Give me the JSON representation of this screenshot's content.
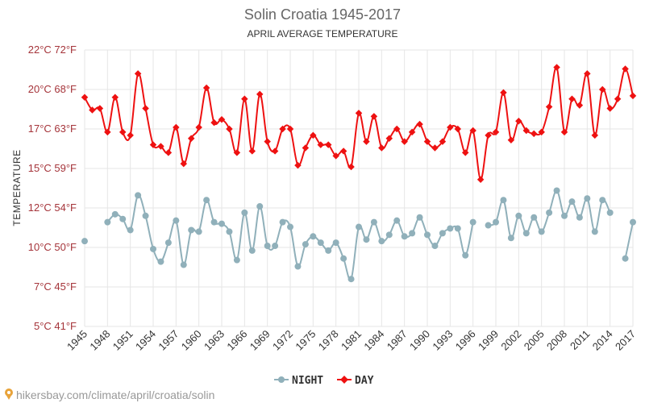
{
  "chart_data": {
    "type": "line",
    "title": "Solin Croatia 1945-2017",
    "subtitle": "APRIL AVERAGE TEMPERATURE",
    "ylabel": "TEMPERATURE",
    "ylim": [
      5,
      22
    ],
    "y_ticks": [
      {
        "value": 5,
        "label": "5°C 41°F"
      },
      {
        "value": 7.5,
        "label": "7°C 45°F"
      },
      {
        "value": 10,
        "label": "10°C 50°F"
      },
      {
        "value": 12.5,
        "label": "12°C 54°F"
      },
      {
        "value": 15,
        "label": "15°C 59°F"
      },
      {
        "value": 17.5,
        "label": "17°C 63°F"
      },
      {
        "value": 20,
        "label": "20°C 68°F"
      },
      {
        "value": 22.5,
        "label": "22°C 72°F"
      }
    ],
    "x_start": 1945,
    "x_end": 2017,
    "x_ticks": [
      1945,
      1948,
      1951,
      1954,
      1957,
      1960,
      1963,
      1966,
      1969,
      1972,
      1975,
      1978,
      1981,
      1984,
      1987,
      1990,
      1993,
      1996,
      1999,
      2002,
      2005,
      2008,
      2011,
      2014,
      2017
    ],
    "legend_position": "bottom",
    "series": [
      {
        "name": "NIGHT",
        "color": "#90b0ba",
        "values": [
          10.4,
          null,
          null,
          11.6,
          12.1,
          11.8,
          11.1,
          13.3,
          12.0,
          9.9,
          9.1,
          10.3,
          11.7,
          8.9,
          11.1,
          11.0,
          13.0,
          11.6,
          11.5,
          11.0,
          9.2,
          12.2,
          9.8,
          12.6,
          10.1,
          10.1,
          11.6,
          11.3,
          8.8,
          10.2,
          10.7,
          10.3,
          9.8,
          10.3,
          9.3,
          8.0,
          11.3,
          10.5,
          11.6,
          10.4,
          10.8,
          11.7,
          10.7,
          10.9,
          11.9,
          10.8,
          10.1,
          10.9,
          11.2,
          11.2,
          9.5,
          11.6,
          null,
          11.4,
          11.6,
          13.0,
          10.6,
          12.0,
          10.9,
          11.9,
          11.0,
          12.2,
          13.6,
          12.0,
          12.9,
          11.9,
          13.1,
          11.0,
          13.0,
          12.2,
          null,
          9.3,
          11.6
        ]
      },
      {
        "name": "DAY",
        "color": "#ee1111",
        "values": [
          19.5,
          18.7,
          18.8,
          17.3,
          19.5,
          17.3,
          17.1,
          21.0,
          18.8,
          16.5,
          16.4,
          16.0,
          17.6,
          15.3,
          16.9,
          17.6,
          20.1,
          17.9,
          18.1,
          17.5,
          16.0,
          19.4,
          16.1,
          19.7,
          16.7,
          16.1,
          17.5,
          17.5,
          15.2,
          16.3,
          17.1,
          16.5,
          16.5,
          15.8,
          16.1,
          15.1,
          18.5,
          16.7,
          18.3,
          16.3,
          16.9,
          17.5,
          16.7,
          17.3,
          17.8,
          16.7,
          16.3,
          16.7,
          17.6,
          17.5,
          16.0,
          17.4,
          14.3,
          17.1,
          17.3,
          19.8,
          16.8,
          18.0,
          17.4,
          17.2,
          17.3,
          18.9,
          21.4,
          17.3,
          19.4,
          19.0,
          21.0,
          17.1,
          20.0,
          18.8,
          19.4,
          21.3,
          19.6
        ]
      }
    ]
  },
  "watermark": "hikersbay.com/climate/april/croatia/solin"
}
